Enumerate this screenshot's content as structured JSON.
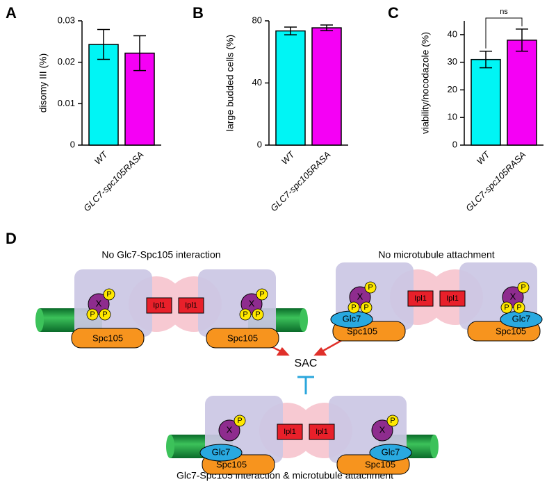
{
  "chart_data": [
    {
      "type": "bar",
      "panel": "A",
      "ylabel": "disomy III (%)",
      "categories": [
        "WT",
        "GLC7-spc105RASA"
      ],
      "values": [
        0.0243,
        0.0222
      ],
      "errors": [
        0.0036,
        0.0042
      ],
      "colors": [
        "#00f5f5",
        "#f500f5"
      ],
      "ylim": [
        0,
        0.03
      ],
      "yticks": [
        0,
        0.01,
        0.02,
        0.03
      ]
    },
    {
      "type": "bar",
      "panel": "B",
      "ylabel": "large budded cells (%)",
      "categories": [
        "WT",
        "GLC7-spc105RASA"
      ],
      "values": [
        73.5,
        75.5
      ],
      "errors": [
        2.5,
        1.8
      ],
      "colors": [
        "#00f5f5",
        "#f500f5"
      ],
      "ylim": [
        0,
        80
      ],
      "yticks": [
        0,
        40,
        80
      ]
    },
    {
      "type": "bar",
      "panel": "C",
      "ylabel": "viability/nocodazole (%)",
      "categories": [
        "WT",
        "GLC7-spc105RASA"
      ],
      "values": [
        31,
        38
      ],
      "errors": [
        3,
        4
      ],
      "colors": [
        "#00f5f5",
        "#f500f5"
      ],
      "ylim": [
        0,
        45
      ],
      "yticks": [
        0,
        10,
        20,
        30,
        40
      ],
      "annotation": "ns"
    }
  ],
  "diagram": {
    "panel": "D",
    "captions": [
      "No Glc7-Spc105 interaction",
      "No microtubule attachment",
      "Glc7-Spc105 interaction & microtubule attachment"
    ],
    "sac": "SAC",
    "kinase": "X",
    "phospho": "P",
    "ipl1": "Ipl1",
    "spc105": "Spc105",
    "glc7": "Glc7"
  }
}
